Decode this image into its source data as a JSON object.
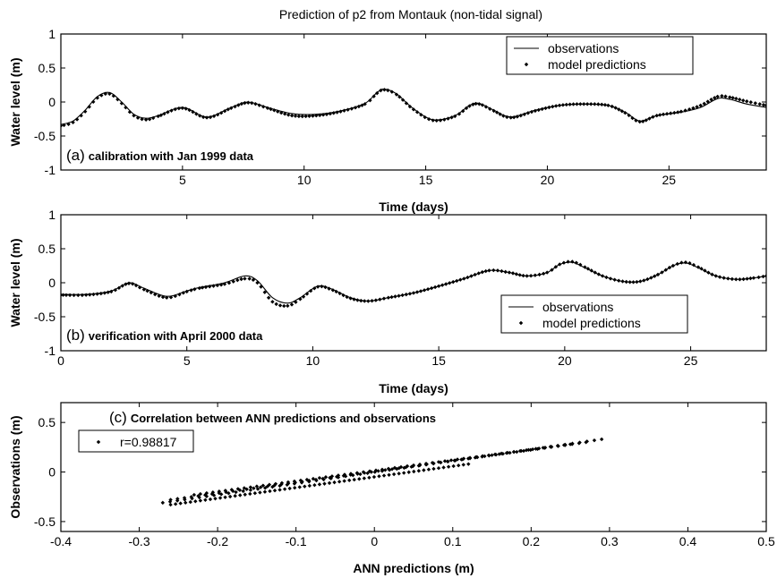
{
  "chart_data": [
    {
      "id": "a",
      "type": "line",
      "title": "Prediction of p2 from Montauk (non-tidal signal)",
      "xlabel": "Time (days)",
      "ylabel": "Water level (m)",
      "xlim": [
        0,
        29
      ],
      "ylim": [
        -1,
        1
      ],
      "xticks": [
        5,
        10,
        15,
        20,
        25
      ],
      "xtick_labels": [
        "5",
        "10",
        "15",
        "20",
        "25"
      ],
      "yticks": [
        -1,
        -0.5,
        0,
        0.5,
        1
      ],
      "ytick_labels": [
        "-1",
        "-0.5",
        "0",
        "0.5",
        "1"
      ],
      "annotation": {
        "prefix": "(a)",
        "text": "calibration with Jan 1999 data"
      },
      "legend": {
        "position": "top-right",
        "entries": [
          "observations",
          "model predictions"
        ]
      },
      "grid": false,
      "series": [
        {
          "name": "observations",
          "style": "line",
          "x": [
            0,
            0.5,
            1,
            1.5,
            2,
            2.5,
            3,
            3.5,
            4,
            5,
            6,
            7,
            7.7,
            8.5,
            9.5,
            10.5,
            11.5,
            12.5,
            13,
            13.3,
            13.8,
            14.5,
            15.3,
            16.2,
            16.8,
            17.2,
            17.8,
            18.5,
            19.5,
            20.5,
            21.5,
            22.5,
            23.2,
            23.8,
            24.5,
            25.5,
            26.3,
            27,
            27.5,
            28.2,
            29
          ],
          "y": [
            -0.33,
            -0.28,
            -0.12,
            0.08,
            0.14,
            0.0,
            -0.18,
            -0.24,
            -0.2,
            -0.08,
            -0.22,
            -0.08,
            0.0,
            -0.08,
            -0.17,
            -0.18,
            -0.13,
            -0.02,
            0.14,
            0.19,
            0.12,
            -0.1,
            -0.26,
            -0.2,
            -0.05,
            -0.02,
            -0.12,
            -0.22,
            -0.12,
            -0.05,
            -0.03,
            -0.05,
            -0.15,
            -0.28,
            -0.2,
            -0.15,
            -0.08,
            0.05,
            0.04,
            -0.03,
            -0.08
          ]
        },
        {
          "name": "model predictions",
          "style": "dots",
          "x": [
            0,
            0.5,
            1,
            1.5,
            2,
            2.5,
            3,
            3.5,
            4,
            5,
            6,
            7,
            7.7,
            8.5,
            9.5,
            10.5,
            11.5,
            12.5,
            13,
            13.3,
            13.8,
            14.5,
            15.3,
            16.2,
            16.8,
            17.2,
            17.8,
            18.5,
            19.5,
            20.5,
            21.5,
            22.5,
            23.2,
            23.8,
            24.5,
            25.5,
            26.3,
            27,
            27.5,
            28.2,
            29
          ],
          "y": [
            -0.35,
            -0.3,
            -0.14,
            0.06,
            0.12,
            -0.02,
            -0.2,
            -0.26,
            -0.21,
            -0.09,
            -0.23,
            -0.09,
            -0.01,
            -0.09,
            -0.2,
            -0.2,
            -0.14,
            -0.03,
            0.13,
            0.18,
            0.11,
            -0.11,
            -0.27,
            -0.21,
            -0.06,
            -0.03,
            -0.13,
            -0.23,
            -0.13,
            -0.05,
            -0.03,
            -0.05,
            -0.16,
            -0.29,
            -0.2,
            -0.14,
            -0.05,
            0.08,
            0.07,
            0.01,
            -0.05
          ]
        }
      ]
    },
    {
      "id": "b",
      "type": "line",
      "xlabel": "Time (days)",
      "ylabel": "Water level (m)",
      "xlim": [
        0,
        28
      ],
      "ylim": [
        -1,
        1
      ],
      "xticks": [
        0,
        5,
        10,
        15,
        20,
        25
      ],
      "xtick_labels": [
        "0",
        "5",
        "10",
        "15",
        "20",
        "25"
      ],
      "yticks": [
        -1,
        -0.5,
        0,
        0.5,
        1
      ],
      "ytick_labels": [
        "-1",
        "-0.5",
        "0",
        "0.5",
        "1"
      ],
      "annotation": {
        "prefix": "(b)",
        "text": "verification with April 2000 data"
      },
      "legend": {
        "position": "bottom-right",
        "entries": [
          "observations",
          "model predictions"
        ]
      },
      "grid": false,
      "series": [
        {
          "name": "observations",
          "style": "line",
          "x": [
            0,
            1,
            2,
            2.7,
            3.3,
            4.2,
            5,
            5.5,
            6.5,
            7.3,
            7.8,
            8.4,
            9,
            9.5,
            10.2,
            10.8,
            11.5,
            12.2,
            13,
            14,
            15,
            16,
            17,
            17.8,
            18.5,
            19.3,
            19.8,
            20.3,
            20.8,
            21.5,
            22.3,
            23,
            23.7,
            24.3,
            24.8,
            25.3,
            26,
            26.8,
            27.5,
            28
          ],
          "y": [
            -0.17,
            -0.17,
            -0.12,
            0.0,
            -0.08,
            -0.2,
            -0.12,
            -0.07,
            0.0,
            0.1,
            0.03,
            -0.22,
            -0.3,
            -0.22,
            -0.05,
            -0.1,
            -0.22,
            -0.27,
            -0.22,
            -0.15,
            -0.05,
            0.06,
            0.18,
            0.15,
            0.1,
            0.15,
            0.27,
            0.3,
            0.22,
            0.1,
            0.02,
            0.02,
            0.12,
            0.25,
            0.29,
            0.22,
            0.1,
            0.05,
            0.07,
            0.1
          ]
        },
        {
          "name": "model predictions",
          "style": "dots",
          "x": [
            0,
            1,
            2,
            2.7,
            3.3,
            4.2,
            5,
            5.5,
            6.5,
            7.3,
            7.8,
            8.4,
            9,
            9.5,
            10.2,
            10.8,
            11.5,
            12.2,
            13,
            14,
            15,
            16,
            17,
            17.8,
            18.5,
            19.3,
            19.8,
            20.3,
            20.8,
            21.5,
            22.3,
            23,
            23.7,
            24.3,
            24.8,
            25.3,
            26,
            26.8,
            27.5,
            28
          ],
          "y": [
            -0.18,
            -0.18,
            -0.13,
            -0.01,
            -0.1,
            -0.22,
            -0.13,
            -0.08,
            -0.02,
            0.06,
            0.0,
            -0.28,
            -0.34,
            -0.24,
            -0.06,
            -0.11,
            -0.23,
            -0.27,
            -0.22,
            -0.15,
            -0.05,
            0.06,
            0.18,
            0.15,
            0.1,
            0.15,
            0.27,
            0.31,
            0.23,
            0.1,
            0.02,
            0.02,
            0.12,
            0.25,
            0.3,
            0.23,
            0.1,
            0.05,
            0.07,
            0.1
          ]
        }
      ]
    },
    {
      "id": "c",
      "type": "scatter",
      "xlabel": "ANN predictions (m)",
      "ylabel": "Observations (m)",
      "xlim": [
        -0.4,
        0.5
      ],
      "ylim": [
        -0.6,
        0.7
      ],
      "xticks": [
        -0.4,
        -0.3,
        -0.2,
        -0.1,
        0,
        0.1,
        0.2,
        0.3,
        0.4,
        0.5
      ],
      "xtick_labels": [
        "-0.4",
        "-0.3",
        "-0.2",
        "-0.1",
        "0",
        "0.1",
        "0.2",
        "0.3",
        "0.4",
        "0.5"
      ],
      "yticks": [
        -0.5,
        0,
        0.5
      ],
      "ytick_labels": [
        "-0.5",
        "0",
        "0.5"
      ],
      "annotation": {
        "prefix": "(c)",
        "text": "Correlation between ANN predictions and observations"
      },
      "legend": {
        "position": "top-left",
        "entries": [
          "r=0.98817"
        ]
      },
      "grid": false,
      "series": [
        {
          "name": "r=0.98817",
          "style": "dots",
          "bands": [
            {
              "x": [
                -0.27,
                0.29
              ],
              "y": [
                -0.31,
                0.33
              ]
            },
            {
              "x": [
                -0.26,
                0.27
              ],
              "y": [
                -0.28,
                0.3
              ]
            },
            {
              "x": [
                -0.23,
                0.25
              ],
              "y": [
                -0.23,
                0.28
              ]
            },
            {
              "x": [
                -0.26,
                0.12
              ],
              "y": [
                -0.33,
                0.08
              ]
            }
          ]
        }
      ]
    }
  ]
}
